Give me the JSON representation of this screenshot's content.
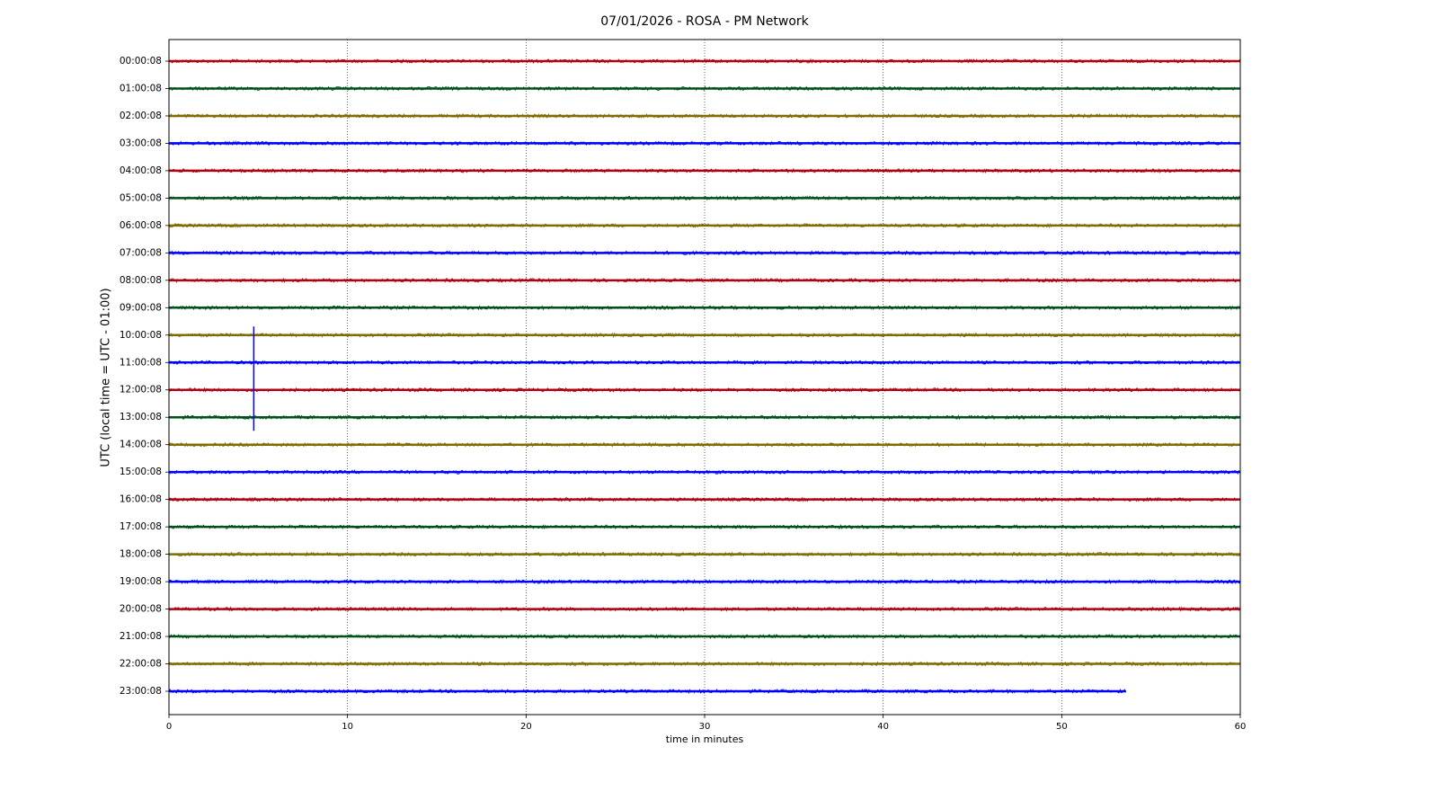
{
  "chart_data": {
    "type": "helicorder",
    "title": "07/01/2026 - ROSA - PM Network",
    "ylabel": "UTC (local time = UTC - 01:00)",
    "xlabel": "time in minutes",
    "xlim": [
      0,
      60
    ],
    "xticks": [
      0,
      10,
      20,
      30,
      40,
      50,
      60
    ],
    "grid": true,
    "series": [
      {
        "name": "00:00:08",
        "color": "#b00012",
        "x": [
          0,
          60
        ]
      },
      {
        "name": "01:00:08",
        "color": "#00501a",
        "x": [
          0,
          60
        ]
      },
      {
        "name": "02:00:08",
        "color": "#806c00",
        "x": [
          0,
          60
        ]
      },
      {
        "name": "03:00:08",
        "color": "#0000ff",
        "x": [
          0,
          60
        ]
      },
      {
        "name": "04:00:08",
        "color": "#b00012",
        "x": [
          0,
          60
        ]
      },
      {
        "name": "05:00:08",
        "color": "#00501a",
        "x": [
          0,
          60
        ]
      },
      {
        "name": "06:00:08",
        "color": "#806c00",
        "x": [
          0,
          60
        ]
      },
      {
        "name": "07:00:08",
        "color": "#0000ff",
        "x": [
          0,
          60
        ]
      },
      {
        "name": "08:00:08",
        "color": "#b00012",
        "x": [
          0,
          60
        ]
      },
      {
        "name": "09:00:08",
        "color": "#00501a",
        "x": [
          0,
          60
        ]
      },
      {
        "name": "10:00:08",
        "color": "#806c00",
        "x": [
          0,
          60
        ]
      },
      {
        "name": "11:00:08",
        "color": "#0000ff",
        "x": [
          0,
          60
        ]
      },
      {
        "name": "12:00:08",
        "color": "#b00012",
        "x": [
          0,
          60
        ]
      },
      {
        "name": "13:00:08",
        "color": "#00501a",
        "x": [
          0,
          60
        ]
      },
      {
        "name": "14:00:08",
        "color": "#806c00",
        "x": [
          0,
          60
        ]
      },
      {
        "name": "15:00:08",
        "color": "#0000ff",
        "x": [
          0,
          60
        ]
      },
      {
        "name": "16:00:08",
        "color": "#b00012",
        "x": [
          0,
          60
        ]
      },
      {
        "name": "17:00:08",
        "color": "#00501a",
        "x": [
          0,
          60
        ]
      },
      {
        "name": "18:00:08",
        "color": "#806c00",
        "x": [
          0,
          60
        ]
      },
      {
        "name": "19:00:08",
        "color": "#0000ff",
        "x": [
          0,
          60
        ]
      },
      {
        "name": "20:00:08",
        "color": "#b00012",
        "x": [
          0,
          60
        ]
      },
      {
        "name": "21:00:08",
        "color": "#00501a",
        "x": [
          0,
          60
        ]
      },
      {
        "name": "22:00:08",
        "color": "#806c00",
        "x": [
          0,
          60
        ]
      },
      {
        "name": "23:00:08",
        "color": "#0000ff",
        "x": [
          0,
          53.6
        ]
      }
    ],
    "spikes": [
      {
        "series": 11,
        "x": 4.75
      }
    ]
  }
}
